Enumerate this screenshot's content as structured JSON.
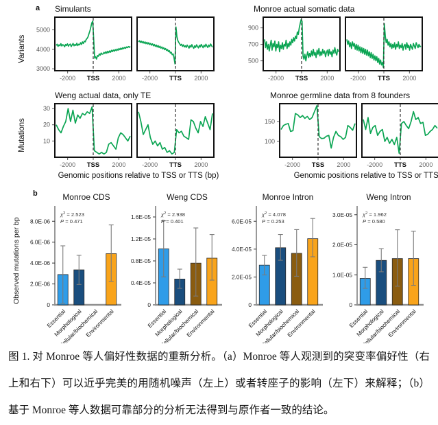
{
  "panel_a": {
    "label": "a",
    "x_caption": "Genomic positions relative to TSS or TTS (bp)"
  },
  "panel_b": {
    "label": "b",
    "ylabel": "Observed mutations per bp"
  },
  "caption": {
    "text": "图 1. 对 Monroe 等人偏好性数据的重新分析。（a）Monroe 等人观测到的突变率偏好性（右上和右下）可以近乎完美的用随机噪声（左上）或者转座子的影响（左下）来解释；（b）基于 Monroe 等人数据可靠部分的分析无法得到与原作者一致的结论。"
  },
  "colors": {
    "line": "#0ba553",
    "dashed": "#333333",
    "bars": [
      "#2f9ce8",
      "#1a4e7e",
      "#8a5c10",
      "#f9a41b"
    ],
    "error_bar": "#7a7a7a",
    "frame": "#111111"
  },
  "chart_data": [
    {
      "type": "line",
      "title": "Simulants",
      "ylabel": "Variants",
      "x_range": [
        -3000,
        3000
      ],
      "ylim": [
        2900,
        5650
      ],
      "yticks": [
        3000,
        4000,
        5000
      ],
      "ytick_labels": [
        "3000",
        "4000",
        "5000"
      ],
      "panels": [
        {
          "xticks": [
            "-2000",
            "TSS",
            "2000"
          ],
          "y": [
            4200,
            4260,
            4150,
            4230,
            4180,
            4290,
            4170,
            4240,
            4210,
            4130,
            4250,
            4190,
            4280,
            4160,
            4230,
            4270,
            4140,
            4220,
            4300,
            4180,
            4250,
            4200,
            4310,
            4190,
            4260,
            4230,
            4340,
            4250,
            4380,
            4300,
            4420,
            4380,
            4500,
            4560,
            4650,
            4800,
            4950,
            5150,
            5350,
            5450,
            4500,
            3550,
            3620,
            3500,
            3680,
            3640,
            3760,
            3700,
            3810,
            3750,
            3760,
            3840,
            3780,
            3880,
            3800,
            3900,
            3830,
            3920,
            3850,
            3950,
            3880,
            3960,
            3900,
            3990,
            3930,
            4010,
            3950,
            4040,
            3980,
            4060,
            4000,
            4080,
            4030,
            4100,
            4050,
            4120,
            4080,
            4140,
            4100,
            4150
          ]
        },
        {
          "xticks": [
            "-2000",
            "TTS",
            "2000"
          ],
          "y": [
            4380,
            4440,
            4350,
            4420,
            4330,
            4400,
            4310,
            4380,
            4290,
            4360,
            4270,
            4340,
            4240,
            4300,
            4210,
            4280,
            4180,
            4250,
            4150,
            4220,
            4120,
            4190,
            4090,
            4160,
            4060,
            4120,
            4020,
            4080,
            3980,
            4040,
            3940,
            3990,
            3880,
            3930,
            3810,
            3850,
            3720,
            3760,
            3550,
            3250,
            5150,
            4650,
            4450,
            4350,
            4280,
            4200,
            4260,
            4150,
            4230,
            4120,
            4180,
            4100,
            4220,
            4140,
            4060,
            4190,
            4110,
            4240,
            4130,
            4050,
            4180,
            4100,
            4230,
            4150,
            4070,
            4200,
            4120,
            4250,
            4160,
            4080,
            4210,
            4130,
            4260,
            4170,
            4090,
            4220,
            4140,
            4270,
            4190,
            4110
          ]
        }
      ]
    },
    {
      "type": "line",
      "title": "Monroe actual somatic data",
      "ylabel": "",
      "x_range": [
        -3000,
        3000
      ],
      "ylim": [
        380,
        1030
      ],
      "yticks": [
        500,
        700,
        900
      ],
      "ytick_labels": [
        "500",
        "700",
        "900"
      ],
      "panels": [
        {
          "xticks": [
            "-2000",
            "TSS",
            "2000"
          ],
          "y": [
            760,
            660,
            730,
            640,
            700,
            620,
            690,
            750,
            630,
            710,
            670,
            740,
            620,
            700,
            660,
            730,
            610,
            690,
            650,
            720,
            640,
            700,
            680,
            750,
            650,
            710,
            670,
            730,
            690,
            760,
            720,
            780,
            740,
            800,
            770,
            850,
            820,
            900,
            950,
            1000,
            980,
            560,
            520,
            580,
            500,
            560,
            610,
            540,
            590,
            550,
            620,
            560,
            640,
            570,
            600,
            540,
            630,
            580,
            650,
            560,
            610,
            570,
            640,
            590,
            620,
            550,
            600,
            630,
            560,
            640,
            580,
            610,
            550,
            630,
            590,
            660,
            600,
            570,
            640,
            610
          ]
        },
        {
          "xticks": [
            "-2000",
            "TTS",
            "2000"
          ],
          "y": [
            760,
            700,
            740,
            670,
            720,
            650,
            730,
            680,
            710,
            640,
            700,
            630,
            690,
            620,
            670,
            600,
            660,
            590,
            650,
            580,
            640,
            570,
            630,
            560,
            610,
            540,
            600,
            530,
            580,
            510,
            560,
            500,
            550,
            480,
            530,
            460,
            510,
            450,
            480,
            420,
            950,
            800,
            720,
            760,
            690,
            730,
            670,
            710,
            650,
            700,
            660,
            720,
            640,
            700,
            670,
            730,
            650,
            690,
            660,
            710,
            630,
            680,
            700,
            640,
            720,
            660,
            690,
            630,
            700,
            670,
            640,
            710,
            680,
            650,
            720,
            690,
            660,
            700,
            670,
            680
          ]
        }
      ]
    },
    {
      "type": "line",
      "title": "Weng actual data, only TE",
      "ylabel": "Mutations",
      "x_range": [
        -3000,
        3000
      ],
      "ylim": [
        0,
        33
      ],
      "yticks": [
        10,
        20,
        30
      ],
      "ytick_labels": [
        "10",
        "20",
        "30"
      ],
      "panels": [
        {
          "xticks": [
            "-2000",
            "TSS",
            "2000"
          ],
          "y": [
            20,
            17,
            15,
            19,
            22,
            30,
            22,
            29,
            21,
            26,
            24,
            27,
            26,
            28,
            27,
            31,
            4,
            3,
            2,
            3,
            2,
            3,
            8,
            9,
            7,
            5,
            12,
            15,
            14,
            12,
            10,
            13
          ]
        },
        {
          "xticks": [
            "-2000",
            "TTS",
            "2000"
          ],
          "y": [
            28,
            22,
            14,
            17,
            20,
            12,
            8,
            10,
            7,
            9,
            5,
            6,
            3,
            4,
            2,
            3,
            17,
            15,
            16,
            13,
            12,
            11,
            23,
            22,
            18,
            15,
            22,
            19,
            25,
            21,
            17,
            27
          ]
        }
      ]
    },
    {
      "type": "line",
      "title": "Monroe germline data from 8 founders",
      "ylabel": "",
      "x_range": [
        -3000,
        3000
      ],
      "ylim": [
        60,
        195
      ],
      "yticks": [
        100,
        150
      ],
      "ytick_labels": [
        "100",
        "150"
      ],
      "panels": [
        {
          "xticks": [
            "-2000",
            "TSS",
            "2000"
          ],
          "y": [
            130,
            140,
            143,
            145,
            125,
            127,
            170,
            167,
            160,
            165,
            158,
            163,
            155,
            160,
            175,
            190,
            112,
            107,
            108,
            113,
            115,
            83,
            110,
            125,
            115,
            112,
            105,
            110,
            140,
            135,
            128,
            145
          ]
        },
        {
          "xticks": [
            "-2000",
            "TTS",
            "2000"
          ],
          "y": [
            155,
            130,
            160,
            120,
            135,
            140,
            115,
            125,
            130,
            100,
            110,
            95,
            105,
            92,
            110,
            70,
            145,
            150,
            140,
            132,
            150,
            175,
            155,
            160,
            145,
            148,
            115,
            118,
            125,
            130,
            140,
            133
          ]
        }
      ]
    },
    {
      "type": "bar",
      "title": "Monroe CDS",
      "categories": [
        "Essential",
        "Morphological",
        "Cellular/biochemical",
        "Environmental"
      ],
      "values": [
        2.9e-06,
        3.35e-06,
        null,
        4.9e-06
      ],
      "errors_low": [
        1.5e-07,
        1.95e-06,
        null,
        2.25e-06
      ],
      "errors_high": [
        5.65e-06,
        4.75e-06,
        null,
        7.65e-06
      ],
      "ylim": [
        0,
        9.2e-06
      ],
      "yticks": [
        0,
        2e-06,
        4e-06,
        6e-06,
        8e-06
      ],
      "ytick_labels": [
        "0",
        "2.0E-06",
        "4.0E-06",
        "6.0E-06",
        "8.0E-06"
      ],
      "stats": {
        "chi2": "2.523",
        "p": "0.471"
      }
    },
    {
      "type": "bar",
      "title": "Weng CDS",
      "categories": [
        "Essential",
        "Morphological",
        "Cellular/biochemical",
        "Environmental"
      ],
      "values": [
        1.02e-05,
        4.7e-06,
        7.6e-06,
        8.5e-06
      ],
      "errors_low": [
        5.1e-06,
        3e-06,
        1.6e-06,
        4.5e-06
      ],
      "errors_high": [
        1.53e-05,
        6.5e-06,
        1.4e-05,
        1.28e-05
      ],
      "ylim": [
        0,
        1.75e-05
      ],
      "yticks": [
        0,
        4e-06,
        8e-06,
        1.2e-05,
        1.6e-05
      ],
      "ytick_labels": [
        "0",
        "0.4E-05",
        "0.8E-05",
        "1.2E-05",
        "1.6E-05"
      ],
      "stats": {
        "chi2": "2.938",
        "p": "0.401"
      }
    },
    {
      "type": "bar",
      "title": "Monroe Intron",
      "categories": [
        "Essential",
        "Morphological",
        "Cellular/biochemical",
        "Environmental"
      ],
      "values": [
        2.85e-05,
        4.1e-05,
        3.7e-05,
        4.75e-05
      ],
      "errors_low": [
        2.15e-05,
        3.2e-05,
        2.05e-05,
        3.45e-05
      ],
      "errors_high": [
        3.55e-05,
        5.05e-05,
        5.4e-05,
        6.2e-05
      ],
      "ylim": [
        0,
        6.9e-05
      ],
      "yticks": [
        0,
        2e-05,
        4e-05,
        6e-05
      ],
      "ytick_labels": [
        "0",
        "2.0E-05",
        "4.0E-05",
        "6.0E-05"
      ],
      "stats": {
        "chi2": "4.078",
        "p": "0.253"
      }
    },
    {
      "type": "bar",
      "title": "Weng Intron",
      "categories": [
        "Essential",
        "Morphological",
        "Cellular/biochemical",
        "Environmental"
      ],
      "values": [
        8.8e-06,
        1.48e-05,
        1.54e-05,
        1.54e-05
      ],
      "errors_low": [
        5.5e-06,
        1.1e-05,
        6.2e-06,
        6.5e-06
      ],
      "errors_high": [
        1.25e-05,
        1.87e-05,
        2.5e-05,
        2.45e-05
      ],
      "ylim": [
        0,
        3.2e-05
      ],
      "yticks": [
        0,
        1e-05,
        2e-05,
        3e-05
      ],
      "ytick_labels": [
        "0",
        "1.0E-05",
        "2.0E-05",
        "3.0E-05"
      ],
      "stats": {
        "chi2": "1.962",
        "p": "0.580"
      }
    }
  ]
}
